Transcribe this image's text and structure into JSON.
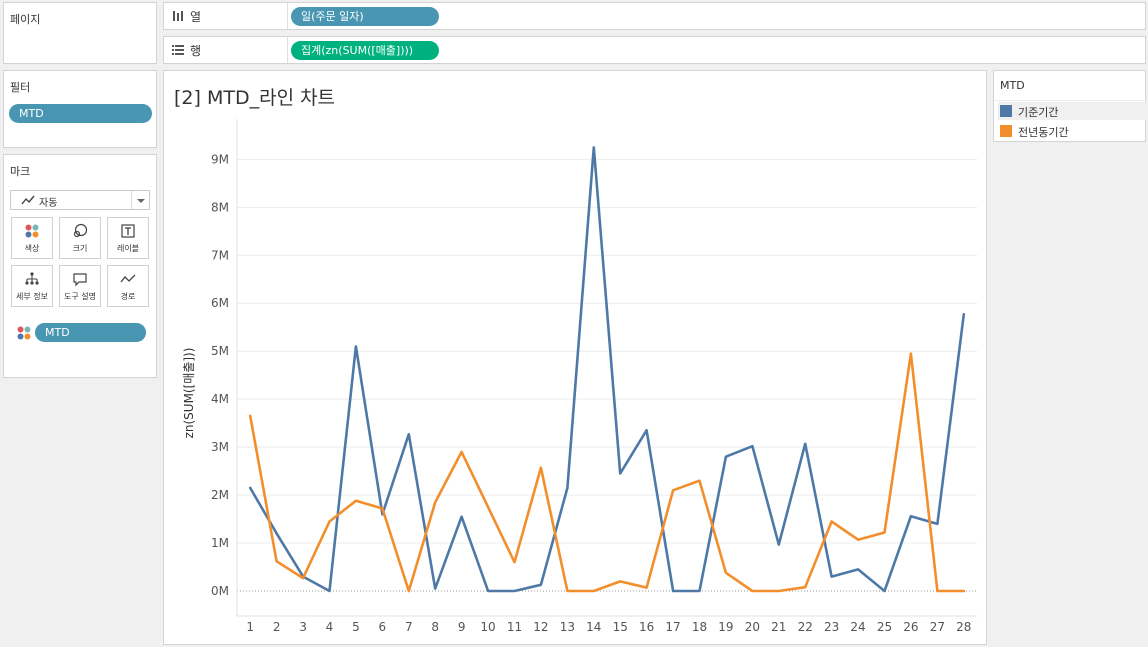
{
  "pages_card": {
    "title": "페이지"
  },
  "columns_shelf": {
    "icon": "columns-icon",
    "label": "열",
    "pill": "일(주문 일자)"
  },
  "rows_shelf": {
    "icon": "rows-icon",
    "label": "행",
    "pill": "집계(zn(SUM([매출])))"
  },
  "filters_card": {
    "title": "필터",
    "pill": "MTD"
  },
  "marks_card": {
    "title": "마크",
    "mark_type": "자동",
    "buttons": [
      {
        "label": "색상",
        "icon": "color-icon"
      },
      {
        "label": "크기",
        "icon": "size-icon"
      },
      {
        "label": "레이블",
        "icon": "label-icon"
      },
      {
        "label": "세부 정보",
        "icon": "detail-icon"
      },
      {
        "label": "도구 설명",
        "icon": "tooltip-icon"
      },
      {
        "label": "경로",
        "icon": "path-icon"
      }
    ],
    "color_pill": "MTD"
  },
  "legend": {
    "title": "MTD",
    "items": [
      {
        "label": "기준기간",
        "color": "#4e79a7"
      },
      {
        "label": "전년동기간",
        "color": "#f28e2b"
      }
    ]
  },
  "chart_data": {
    "type": "line",
    "title": "[2] MTD_라인 차트",
    "xlabel": "",
    "ylabel": "zn(SUM([매출]))",
    "x": [
      1,
      2,
      3,
      4,
      5,
      6,
      7,
      8,
      9,
      10,
      11,
      12,
      13,
      14,
      15,
      16,
      17,
      18,
      19,
      20,
      21,
      22,
      23,
      24,
      25,
      26,
      27,
      28
    ],
    "ylim": [
      0,
      9.8
    ],
    "yticks": [
      0,
      1,
      2,
      3,
      4,
      5,
      6,
      7,
      8,
      9
    ],
    "ytick_labels": [
      "0M",
      "1M",
      "2M",
      "3M",
      "4M",
      "5M",
      "6M",
      "7M",
      "8M",
      "9M"
    ],
    "y_unit": "M",
    "grid": true,
    "series": [
      {
        "name": "기준기간",
        "color": "#4e79a7",
        "values": [
          2.15,
          1.2,
          0.3,
          0.0,
          5.1,
          1.6,
          3.27,
          0.05,
          1.55,
          0.0,
          0.0,
          0.13,
          2.15,
          9.25,
          2.45,
          3.35,
          0.0,
          0.0,
          2.8,
          3.02,
          0.97,
          3.07,
          0.3,
          0.45,
          0.0,
          1.56,
          1.4,
          5.77
        ]
      },
      {
        "name": "전년동기간",
        "color": "#f28e2b",
        "values": [
          3.65,
          0.62,
          0.27,
          1.45,
          1.88,
          1.72,
          0.0,
          1.85,
          2.9,
          1.75,
          0.6,
          2.57,
          0.0,
          0.0,
          0.2,
          0.07,
          2.1,
          2.3,
          0.38,
          0.0,
          0.0,
          0.08,
          1.45,
          1.07,
          1.22,
          4.95,
          0.0,
          0.0
        ]
      }
    ]
  }
}
